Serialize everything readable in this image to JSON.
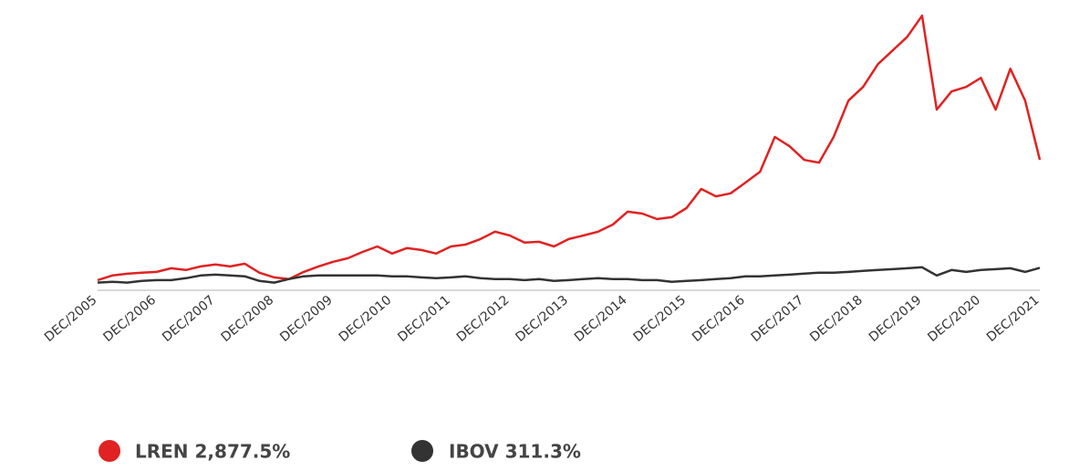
{
  "chart_data": {
    "type": "line",
    "categories": [
      "DEC/2005",
      null,
      null,
      null,
      "DEC/2006",
      null,
      null,
      null,
      "DEC/2007",
      null,
      null,
      null,
      "DEC/2008",
      null,
      null,
      null,
      "DEC/2009",
      null,
      null,
      null,
      "DEC/2010",
      null,
      null,
      null,
      "DEC/2011",
      null,
      null,
      null,
      "DEC/2012",
      null,
      null,
      null,
      "DEC/2013",
      null,
      null,
      null,
      "DEC/2014",
      null,
      null,
      null,
      "DEC/2015",
      null,
      null,
      null,
      "DEC/2016",
      null,
      null,
      null,
      "DEC/2017",
      null,
      null,
      null,
      "DEC/2018",
      null,
      null,
      null,
      "DEC/2019",
      null,
      null,
      null,
      "DEC/2020",
      null,
      null,
      null,
      "DEC/2021"
    ],
    "series": [
      {
        "name": "LREN 2,877.5%",
        "color": "#e02222",
        "values": [
          20,
          130,
          170,
          195,
          215,
          300,
          260,
          345,
          390,
          345,
          410,
          195,
          85,
          45,
          215,
          345,
          455,
          540,
          690,
          820,
          650,
          780,
          735,
          650,
          820,
          865,
          995,
          1170,
          1080,
          910,
          930,
          820,
          995,
          1080,
          1170,
          1340,
          1645,
          1600,
          1470,
          1515,
          1730,
          2185,
          2010,
          2080,
          2335,
          2595,
          3420,
          3200,
          2875,
          2810,
          3420,
          4285,
          4610,
          5150,
          5475,
          5800,
          6300,
          4070,
          4500,
          4610,
          4825,
          4070,
          5040,
          4285,
          2877.5
        ]
      },
      {
        "name": "IBOV 311.3%",
        "color": "#333333",
        "values": [
          -40,
          -20,
          -40,
          0,
          20,
          20,
          65,
          130,
          150,
          130,
          110,
          0,
          -40,
          45,
          110,
          130,
          130,
          130,
          130,
          130,
          110,
          110,
          85,
          65,
          85,
          110,
          65,
          45,
          45,
          20,
          45,
          0,
          20,
          45,
          65,
          45,
          45,
          20,
          20,
          -20,
          0,
          20,
          45,
          65,
          110,
          110,
          130,
          150,
          175,
          195,
          195,
          215,
          240,
          260,
          280,
          300,
          325,
          130,
          260,
          215,
          260,
          280,
          300,
          215,
          311.3
        ]
      }
    ],
    "ylim": [
      -200,
      6500
    ]
  }
}
